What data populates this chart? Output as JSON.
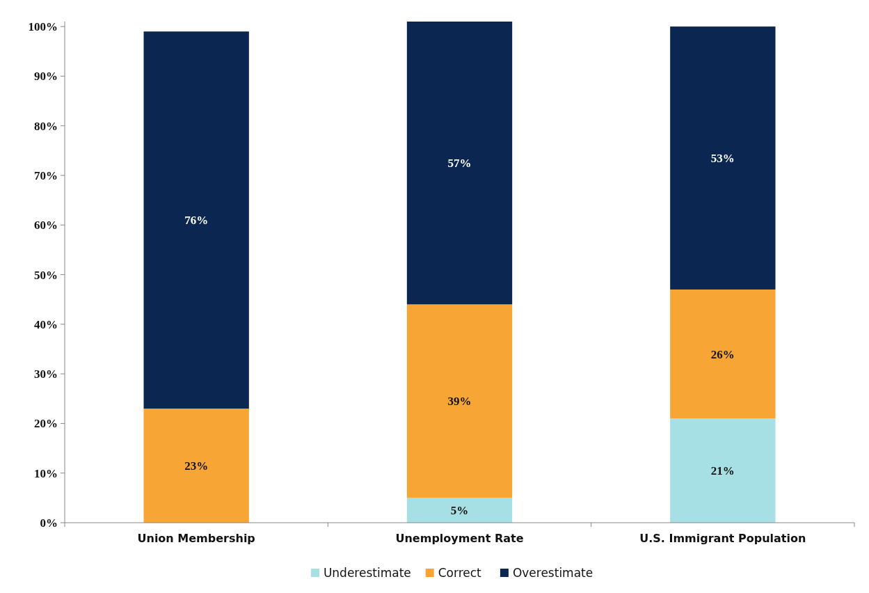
{
  "chart_data": {
    "type": "bar",
    "stacked": true,
    "categories": [
      "Union Membership",
      "Unemployment Rate",
      "U.S. Immigrant Population"
    ],
    "series": [
      {
        "name": "Underestimate",
        "color": "#a6e0e4",
        "values": [
          null,
          5,
          21
        ],
        "value_labels": [
          null,
          "5%",
          "21%"
        ]
      },
      {
        "name": "Correct",
        "color": "#f7a535",
        "values": [
          23,
          39,
          26
        ],
        "value_labels": [
          "23%",
          "39%",
          "26%"
        ]
      },
      {
        "name": "Overestimate",
        "color": "#0b2651",
        "values": [
          76,
          57,
          53
        ],
        "value_labels": [
          "76%",
          "57%",
          "53%"
        ]
      }
    ],
    "ylim": [
      0,
      101
    ],
    "yticks": [
      {
        "value": 0,
        "label": "0%"
      },
      {
        "value": 10,
        "label": "10%"
      },
      {
        "value": 20,
        "label": "20%"
      },
      {
        "value": 30,
        "label": "30%"
      },
      {
        "value": 40,
        "label": "40%"
      },
      {
        "value": 50,
        "label": "50%"
      },
      {
        "value": 60,
        "label": "60%"
      },
      {
        "value": 70,
        "label": "70%"
      },
      {
        "value": 80,
        "label": "80%"
      },
      {
        "value": 90,
        "label": "90%"
      },
      {
        "value": 100,
        "label": "100%"
      }
    ],
    "grid": false,
    "legend": "bottom"
  }
}
